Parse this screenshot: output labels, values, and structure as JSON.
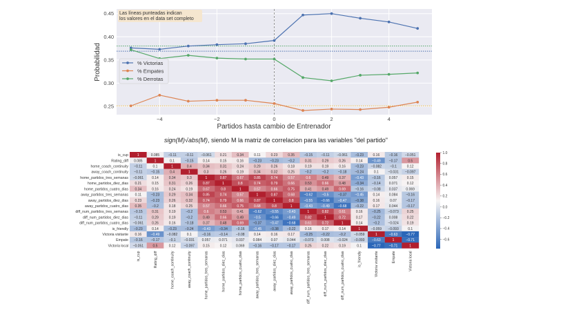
{
  "chart_data": [
    {
      "type": "line",
      "xlabel": "Partidos hasta cambio de Entrenador",
      "ylabel": "Probabilidad",
      "xlim": [
        -5.5,
        5.5
      ],
      "ylim": [
        0.232,
        0.46
      ],
      "xticks": [
        -4,
        -2,
        0,
        2,
        4
      ],
      "xtick_labels": [
        "−4",
        "−2",
        "0",
        "2",
        "4"
      ],
      "yticks": [
        0.25,
        0.3,
        0.35,
        0.4,
        0.45
      ],
      "ytick_labels": [
        "0.25",
        "0.30",
        "0.35",
        "0.40",
        "0.45"
      ],
      "grid": true,
      "background": "#eaeaf2",
      "legend_placement": "center-left",
      "annotation": [
        "Las líneas punteadas indican",
        "los valores en el data set completo"
      ],
      "vertical_line_x": 0,
      "x": [
        -5,
        -4,
        -3,
        -2,
        -1,
        0,
        1,
        2,
        3,
        4,
        5
      ],
      "series": [
        {
          "name": "% Victorias",
          "color": "#4c72b0",
          "reference": 0.369,
          "values": [
            0.376,
            0.373,
            0.38,
            0.383,
            0.385,
            0.392,
            0.447,
            0.45,
            0.44,
            0.432,
            0.418
          ]
        },
        {
          "name": "% Empates",
          "color": "#dd8452",
          "reference": 0.251,
          "values": [
            0.251,
            0.274,
            0.261,
            0.263,
            0.263,
            0.256,
            0.241,
            0.244,
            0.243,
            0.248,
            0.259
          ]
        },
        {
          "name": "% Derrotas",
          "color": "#55a868",
          "reference": 0.38,
          "values": [
            0.372,
            0.353,
            0.36,
            0.354,
            0.352,
            0.352,
            0.312,
            0.305,
            0.317,
            0.319,
            0.322
          ]
        }
      ]
    },
    {
      "type": "heatmap",
      "title_math": "sign(M)√abs(M)",
      "title_rest": ", siendo M la matriz de correlacion para las variables \"del partido\"",
      "colorbar_range": [
        -0.77,
        1.0
      ],
      "colorbar_ticks": [
        1.0,
        0.8,
        0.6,
        0.4,
        0.2,
        0.0,
        -0.2,
        -0.4,
        -0.6
      ],
      "colorbar_tick_labels": [
        "1.0",
        "0.8",
        "0.6",
        "0.4",
        "0.2",
        "0.0",
        "−0.2",
        "−0.4",
        "−0.6"
      ],
      "colormap": {
        "low": "#2a66b8",
        "mid": "#f7f4f4",
        "high": "#b11f2e"
      },
      "labels": [
        "is_cup",
        "Rating_diff",
        "home_coach_continuity",
        "away_coach_continuity",
        "home_partidos_tres_semanas",
        "home_partidos_diez_dias",
        "home_partidos_cuatro_dias",
        "away_partidos_tres_semanas",
        "away_partidos_diez_dias",
        "away_partidos_cuatro_dias",
        "diff_num_partidos_tres_semanas",
        "diff_num_partidos_diez_dias",
        "diff_num_partidos_cuatro_dias",
        "is_friendly",
        "Victoria visitante",
        "Empate",
        "Victoria local"
      ],
      "values": [
        [
          1,
          0.085,
          -0.11,
          -0.11,
          -0.061,
          0.21,
          0.34,
          0.11,
          0.23,
          0.35,
          -0.15,
          -0.11,
          -0.061,
          -0.23,
          0.16,
          -0.16,
          -0.051
        ],
        [
          0.085,
          1,
          0.1,
          -0.15,
          0.14,
          0.15,
          0.16,
          -0.23,
          -0.23,
          -0.2,
          0.31,
          0.29,
          0.26,
          0.14,
          -0.49,
          -0.17,
          0.5
        ],
        [
          -0.11,
          0.1,
          1,
          0.4,
          0.34,
          0.31,
          0.24,
          0.29,
          0.26,
          0.18,
          0.19,
          0.19,
          0.16,
          -0.23,
          -0.082,
          -0.1,
          0.12
        ],
        [
          -0.11,
          -0.15,
          0.4,
          1,
          0.3,
          0.26,
          0.19,
          0.34,
          0.32,
          0.25,
          -0.2,
          -0.2,
          -0.18,
          -0.24,
          0.1,
          -0.031,
          -0.097
        ],
        [
          -0.061,
          0.14,
          0.34,
          0.3,
          1,
          0.87,
          0.67,
          0.85,
          0.74,
          0.57,
          0.6,
          0.49,
          0.37,
          -0.43,
          -0.16,
          0.057,
          0.15
        ],
        [
          0.21,
          0.15,
          0.31,
          0.26,
          0.87,
          1,
          0.8,
          0.74,
          0.79,
          0.66,
          0.53,
          0.66,
          0.48,
          -0.34,
          -0.14,
          0.071,
          0.12
        ],
        [
          0.34,
          0.16,
          0.24,
          0.19,
          0.67,
          0.8,
          1,
          0.57,
          0.66,
          0.75,
          0.41,
          0.49,
          0.69,
          -0.16,
          -0.08,
          0.037,
          0.069
        ],
        [
          0.11,
          -0.23,
          0.29,
          0.34,
          0.85,
          0.74,
          0.57,
          1,
          0.87,
          0.68,
          -0.62,
          -0.5,
          -0.37,
          -0.45,
          0.14,
          0.084,
          -0.16
        ],
        [
          0.23,
          -0.23,
          0.26,
          0.32,
          0.74,
          0.79,
          0.66,
          0.87,
          1,
          0.8,
          -0.55,
          -0.66,
          -0.47,
          -0.38,
          0.16,
          0.07,
          -0.17
        ],
        [
          0.35,
          -0.2,
          0.18,
          0.25,
          0.57,
          0.66,
          0.75,
          0.68,
          0.8,
          1,
          -0.43,
          -0.49,
          -0.68,
          -0.22,
          0.17,
          0.044,
          -0.17
        ],
        [
          -0.15,
          0.31,
          0.19,
          -0.2,
          0.6,
          0.53,
          0.41,
          -0.62,
          -0.55,
          -0.43,
          1,
          0.82,
          0.61,
          0.16,
          -0.25,
          -0.073,
          0.25
        ],
        [
          -0.11,
          0.29,
          0.19,
          -0.2,
          0.49,
          0.66,
          0.49,
          -0.5,
          -0.66,
          -0.49,
          0.82,
          1,
          0.72,
          0.17,
          -0.22,
          0.008,
          0.22
        ],
        [
          -0.061,
          0.26,
          0.16,
          -0.18,
          0.37,
          0.48,
          0.69,
          -0.37,
          -0.47,
          -0.68,
          0.61,
          0.72,
          1,
          0.14,
          -0.2,
          -0.024,
          0.19
        ],
        [
          -0.23,
          0.14,
          -0.23,
          -0.24,
          -0.43,
          -0.34,
          -0.16,
          -0.45,
          -0.38,
          -0.22,
          0.16,
          0.17,
          0.14,
          1,
          -0.059,
          -0.093,
          0.1
        ],
        [
          0.16,
          -0.49,
          -0.082,
          0.1,
          -0.16,
          -0.14,
          -0.08,
          0.14,
          0.16,
          0.17,
          -0.25,
          -0.22,
          -0.2,
          -0.059,
          1,
          -0.63,
          -0.77
        ],
        [
          -0.16,
          -0.17,
          -0.1,
          -0.031,
          0.057,
          0.071,
          0.037,
          0.084,
          0.07,
          0.044,
          -0.073,
          0.008,
          -0.024,
          -0.093,
          -0.63,
          1,
          -0.71
        ],
        [
          -0.051,
          0.5,
          0.12,
          -0.097,
          0.15,
          0.12,
          0.069,
          -0.16,
          -0.17,
          -0.17,
          0.25,
          0.22,
          0.19,
          0.1,
          -0.77,
          -0.71,
          1
        ]
      ]
    }
  ]
}
